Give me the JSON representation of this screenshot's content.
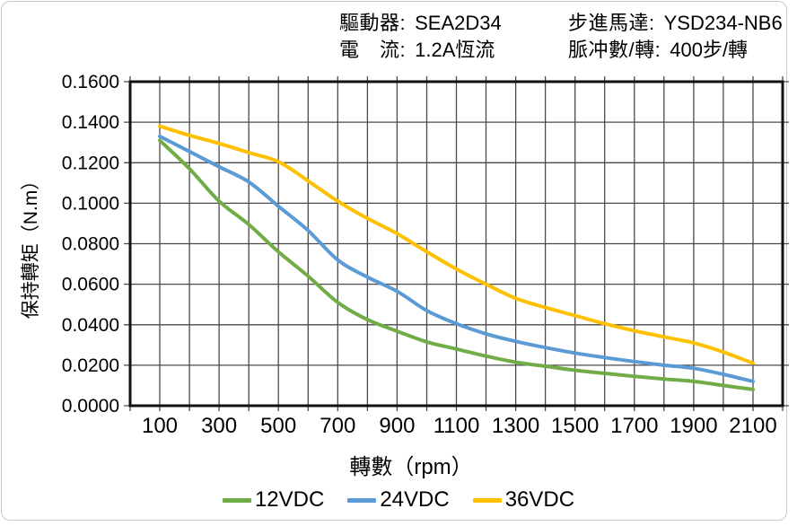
{
  "header": {
    "driver_label": "驅動器:",
    "driver_value": "SEA2D34",
    "current_label": "電　流:",
    "current_value": "1.2A恆流",
    "motor_label": "步進馬達:",
    "motor_value": "YSD234-NB6",
    "pulses_label": "脈冲數/轉:",
    "pulses_value": "400步/轉"
  },
  "chart_data": {
    "type": "line",
    "title": "",
    "xlabel": "轉數（rpm）",
    "ylabel": "保持轉矩（N.m）",
    "xlim": [
      0,
      2200
    ],
    "ylim": [
      0,
      0.16
    ],
    "x_grid_step": 100,
    "y_tick_step": 0.02,
    "grid": true,
    "legend_position": "bottom",
    "grid_color": "#4a4a4a",
    "axis_color": "#111111",
    "x_ticks": [
      100,
      300,
      500,
      700,
      900,
      1100,
      1300,
      1500,
      1700,
      1900,
      2100
    ],
    "x_tick_labels": [
      "100",
      "300",
      "500",
      "700",
      "900",
      "1100",
      "1300",
      "1500",
      "1700",
      "1900",
      "2100"
    ],
    "y_tick_labels": [
      "0.0000",
      "0.0200",
      "0.0400",
      "0.0600",
      "0.0800",
      "0.1000",
      "0.1200",
      "0.1400",
      "0.1600"
    ],
    "x": [
      100,
      200,
      300,
      400,
      500,
      600,
      700,
      800,
      900,
      1000,
      1100,
      1200,
      1300,
      1400,
      1500,
      1600,
      1700,
      1800,
      1900,
      2000,
      2100
    ],
    "series": [
      {
        "name": "12VDC",
        "color": "#70AD47",
        "values": [
          0.131,
          0.117,
          0.101,
          0.0895,
          0.076,
          0.064,
          0.051,
          0.0425,
          0.0368,
          0.0315,
          0.028,
          0.0245,
          0.0215,
          0.0195,
          0.0175,
          0.016,
          0.0145,
          0.0132,
          0.012,
          0.01,
          0.008
        ]
      },
      {
        "name": "24VDC",
        "color": "#5B9BD5",
        "values": [
          0.133,
          0.1255,
          0.118,
          0.1105,
          0.0985,
          0.0865,
          0.072,
          0.0635,
          0.0565,
          0.047,
          0.0405,
          0.0355,
          0.0318,
          0.0287,
          0.026,
          0.0238,
          0.0218,
          0.02,
          0.0185,
          0.0155,
          0.012
        ]
      },
      {
        "name": "36VDC",
        "color": "#FFC000",
        "values": [
          0.138,
          0.1335,
          0.1295,
          0.125,
          0.1205,
          0.111,
          0.101,
          0.0925,
          0.085,
          0.076,
          0.0675,
          0.06,
          0.053,
          0.0485,
          0.0445,
          0.0405,
          0.037,
          0.034,
          0.031,
          0.0265,
          0.021
        ]
      }
    ]
  }
}
